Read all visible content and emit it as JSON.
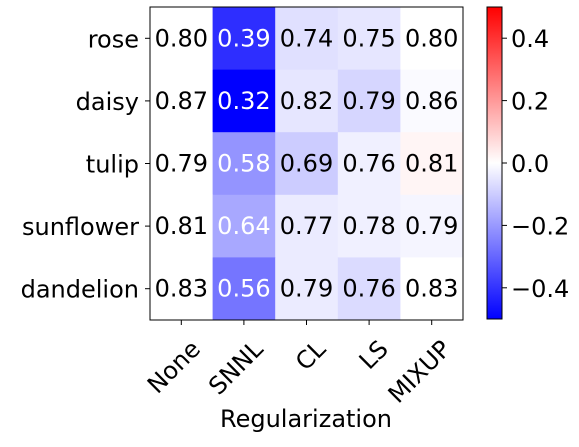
{
  "chart_data": {
    "type": "heatmap",
    "title": "",
    "xlabel": "Regularization",
    "ylabel": "",
    "x_categories": [
      "None",
      "SNNL",
      "CL",
      "LS",
      "MIXUP"
    ],
    "y_categories": [
      "rose",
      "daisy",
      "tulip",
      "sunflower",
      "dandelion"
    ],
    "cell_labels": [
      [
        "0.80",
        "0.39",
        "0.74",
        "0.75",
        "0.80"
      ],
      [
        "0.87",
        "0.32",
        "0.82",
        "0.79",
        "0.86"
      ],
      [
        "0.79",
        "0.58",
        "0.69",
        "0.76",
        "0.81"
      ],
      [
        "0.81",
        "0.64",
        "0.77",
        "0.78",
        "0.79"
      ],
      [
        "0.83",
        "0.56",
        "0.79",
        "0.76",
        "0.83"
      ]
    ],
    "color_values": [
      [
        0.0,
        -0.41,
        -0.06,
        -0.05,
        0.0
      ],
      [
        0.0,
        -0.55,
        -0.05,
        -0.08,
        -0.01
      ],
      [
        0.0,
        -0.21,
        -0.1,
        -0.03,
        0.02
      ],
      [
        0.0,
        -0.17,
        -0.04,
        -0.03,
        -0.02
      ],
      [
        0.0,
        -0.27,
        -0.04,
        -0.07,
        0.0
      ]
    ],
    "colormap": "bwr",
    "colormap_colors": {
      "low": "#0000ff",
      "mid": "#ffffff",
      "high": "#ff0000"
    },
    "color_range": [
      -0.5,
      0.5
    ],
    "colorbar_ticks": [
      "−0.4",
      "−0.2",
      "0.0",
      "0.2",
      "0.4"
    ],
    "colorbar_tick_values": [
      -0.4,
      -0.2,
      0.0,
      0.2,
      0.4
    ],
    "light_text_color": "#ffffff",
    "dark_text_color": "#000000"
  }
}
